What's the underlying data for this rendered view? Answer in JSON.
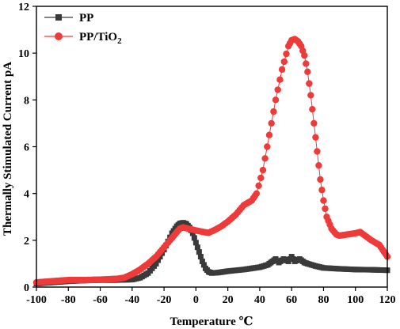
{
  "chart_data": {
    "type": "scatter",
    "xlabel": "Temperature ℃",
    "ylabel": "Thermally Stimulated Current pA",
    "xlim": [
      -100,
      120
    ],
    "ylim": [
      0,
      12
    ],
    "xticks": [
      -100,
      -80,
      -60,
      -40,
      -20,
      0,
      20,
      40,
      60,
      80,
      100,
      120
    ],
    "yticks": [
      0,
      2,
      4,
      6,
      8,
      10,
      12
    ],
    "legend_position": "top-left",
    "series": [
      {
        "name": "PP",
        "name_main": "PP",
        "name_sub": "",
        "marker": "square",
        "color": "#3a3a3a",
        "points": [
          [
            -100,
            0.15
          ],
          [
            -90,
            0.2
          ],
          [
            -80,
            0.25
          ],
          [
            -70,
            0.28
          ],
          [
            -60,
            0.3
          ],
          [
            -50,
            0.3
          ],
          [
            -40,
            0.32
          ],
          [
            -35,
            0.4
          ],
          [
            -30,
            0.6
          ],
          [
            -25,
            1.0
          ],
          [
            -20,
            1.6
          ],
          [
            -15,
            2.3
          ],
          [
            -12,
            2.6
          ],
          [
            -10,
            2.72
          ],
          [
            -8,
            2.75
          ],
          [
            -6,
            2.7
          ],
          [
            -4,
            2.55
          ],
          [
            -2,
            2.3
          ],
          [
            0,
            1.9
          ],
          [
            2,
            1.5
          ],
          [
            4,
            1.1
          ],
          [
            6,
            0.8
          ],
          [
            8,
            0.65
          ],
          [
            10,
            0.6
          ],
          [
            14,
            0.62
          ],
          [
            20,
            0.68
          ],
          [
            30,
            0.75
          ],
          [
            40,
            0.85
          ],
          [
            45,
            0.95
          ],
          [
            48,
            1.1
          ],
          [
            50,
            1.2
          ],
          [
            52,
            1.05
          ],
          [
            55,
            1.2
          ],
          [
            58,
            1.1
          ],
          [
            60,
            1.3
          ],
          [
            62,
            1.1
          ],
          [
            65,
            1.2
          ],
          [
            68,
            1.05
          ],
          [
            70,
            1.0
          ],
          [
            75,
            0.9
          ],
          [
            80,
            0.82
          ],
          [
            90,
            0.78
          ],
          [
            100,
            0.75
          ],
          [
            110,
            0.74
          ],
          [
            120,
            0.72
          ]
        ]
      },
      {
        "name": "PP/TiO2",
        "name_main": "PP/TiO",
        "name_sub": "2",
        "marker": "circle",
        "color": "#ef3a3a",
        "points": [
          [
            -100,
            0.2
          ],
          [
            -90,
            0.25
          ],
          [
            -80,
            0.3
          ],
          [
            -70,
            0.3
          ],
          [
            -60,
            0.32
          ],
          [
            -50,
            0.35
          ],
          [
            -45,
            0.4
          ],
          [
            -40,
            0.55
          ],
          [
            -35,
            0.75
          ],
          [
            -30,
            1.0
          ],
          [
            -25,
            1.3
          ],
          [
            -20,
            1.7
          ],
          [
            -15,
            2.1
          ],
          [
            -12,
            2.35
          ],
          [
            -10,
            2.5
          ],
          [
            -8,
            2.55
          ],
          [
            -5,
            2.5
          ],
          [
            0,
            2.42
          ],
          [
            5,
            2.35
          ],
          [
            8,
            2.32
          ],
          [
            12,
            2.45
          ],
          [
            16,
            2.6
          ],
          [
            20,
            2.8
          ],
          [
            25,
            3.1
          ],
          [
            30,
            3.5
          ],
          [
            35,
            3.7
          ],
          [
            38,
            4.0
          ],
          [
            42,
            5.0
          ],
          [
            46,
            6.5
          ],
          [
            50,
            8.0
          ],
          [
            54,
            9.3
          ],
          [
            58,
            10.3
          ],
          [
            60,
            10.55
          ],
          [
            62,
            10.6
          ],
          [
            64,
            10.5
          ],
          [
            66,
            10.3
          ],
          [
            68,
            9.9
          ],
          [
            70,
            9.2
          ],
          [
            72,
            8.2
          ],
          [
            74,
            7.0
          ],
          [
            76,
            5.8
          ],
          [
            78,
            4.6
          ],
          [
            80,
            3.7
          ],
          [
            82,
            3.0
          ],
          [
            85,
            2.5
          ],
          [
            88,
            2.25
          ],
          [
            90,
            2.2
          ],
          [
            95,
            2.25
          ],
          [
            100,
            2.3
          ],
          [
            103,
            2.35
          ],
          [
            106,
            2.2
          ],
          [
            110,
            2.0
          ],
          [
            115,
            1.8
          ],
          [
            118,
            1.5
          ],
          [
            120,
            1.3
          ]
        ]
      }
    ]
  }
}
